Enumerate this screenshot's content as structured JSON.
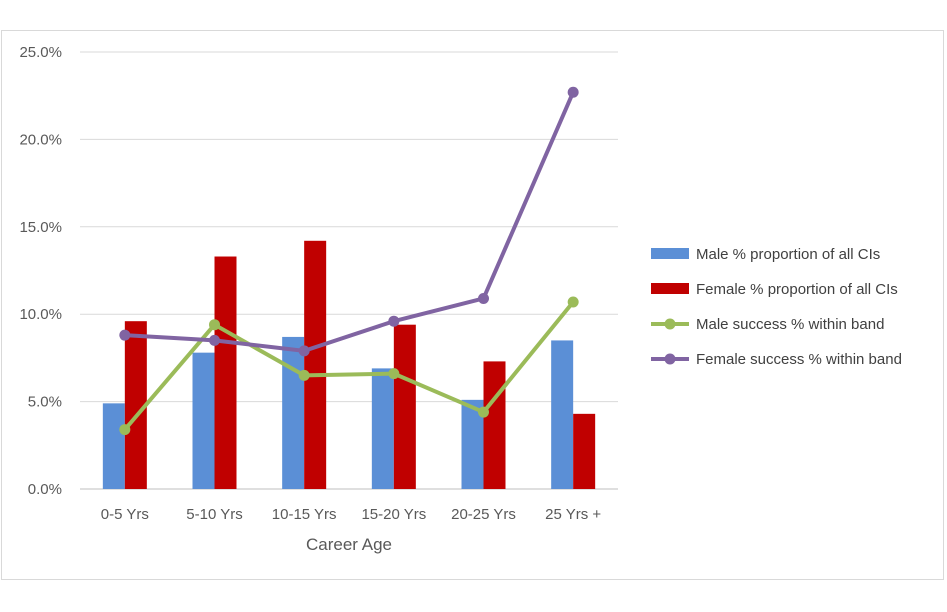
{
  "chart_data": {
    "type": "bar",
    "categories": [
      "0-5 Yrs",
      "5-10 Yrs",
      "10-15 Yrs",
      "15-20 Yrs",
      "20-25 Yrs",
      "25 Yrs +"
    ],
    "series": [
      {
        "name": "Male % proportion of all CIs",
        "kind": "bar",
        "color": "#5b8fd6",
        "values": [
          4.9,
          7.8,
          8.7,
          6.9,
          5.1,
          8.5
        ]
      },
      {
        "name": "Female % proportion of all CIs",
        "kind": "bar",
        "color": "#c00000",
        "values": [
          9.6,
          13.3,
          14.2,
          9.4,
          7.3,
          4.3
        ]
      },
      {
        "name": "Male success % within band",
        "kind": "line",
        "color": "#9bbb59",
        "values": [
          3.4,
          9.4,
          6.5,
          6.6,
          4.4,
          10.7
        ]
      },
      {
        "name": "Female success % within band",
        "kind": "line",
        "color": "#8064a2",
        "values": [
          8.8,
          8.5,
          7.9,
          9.6,
          10.9,
          22.7
        ]
      }
    ],
    "title": "",
    "xlabel": "Career Age",
    "ylabel": "",
    "ylim": [
      0,
      25
    ],
    "yticks": [
      "0.0%",
      "5.0%",
      "10.0%",
      "15.0%",
      "20.0%",
      "25.0%"
    ],
    "grid": true,
    "legend": "right"
  }
}
